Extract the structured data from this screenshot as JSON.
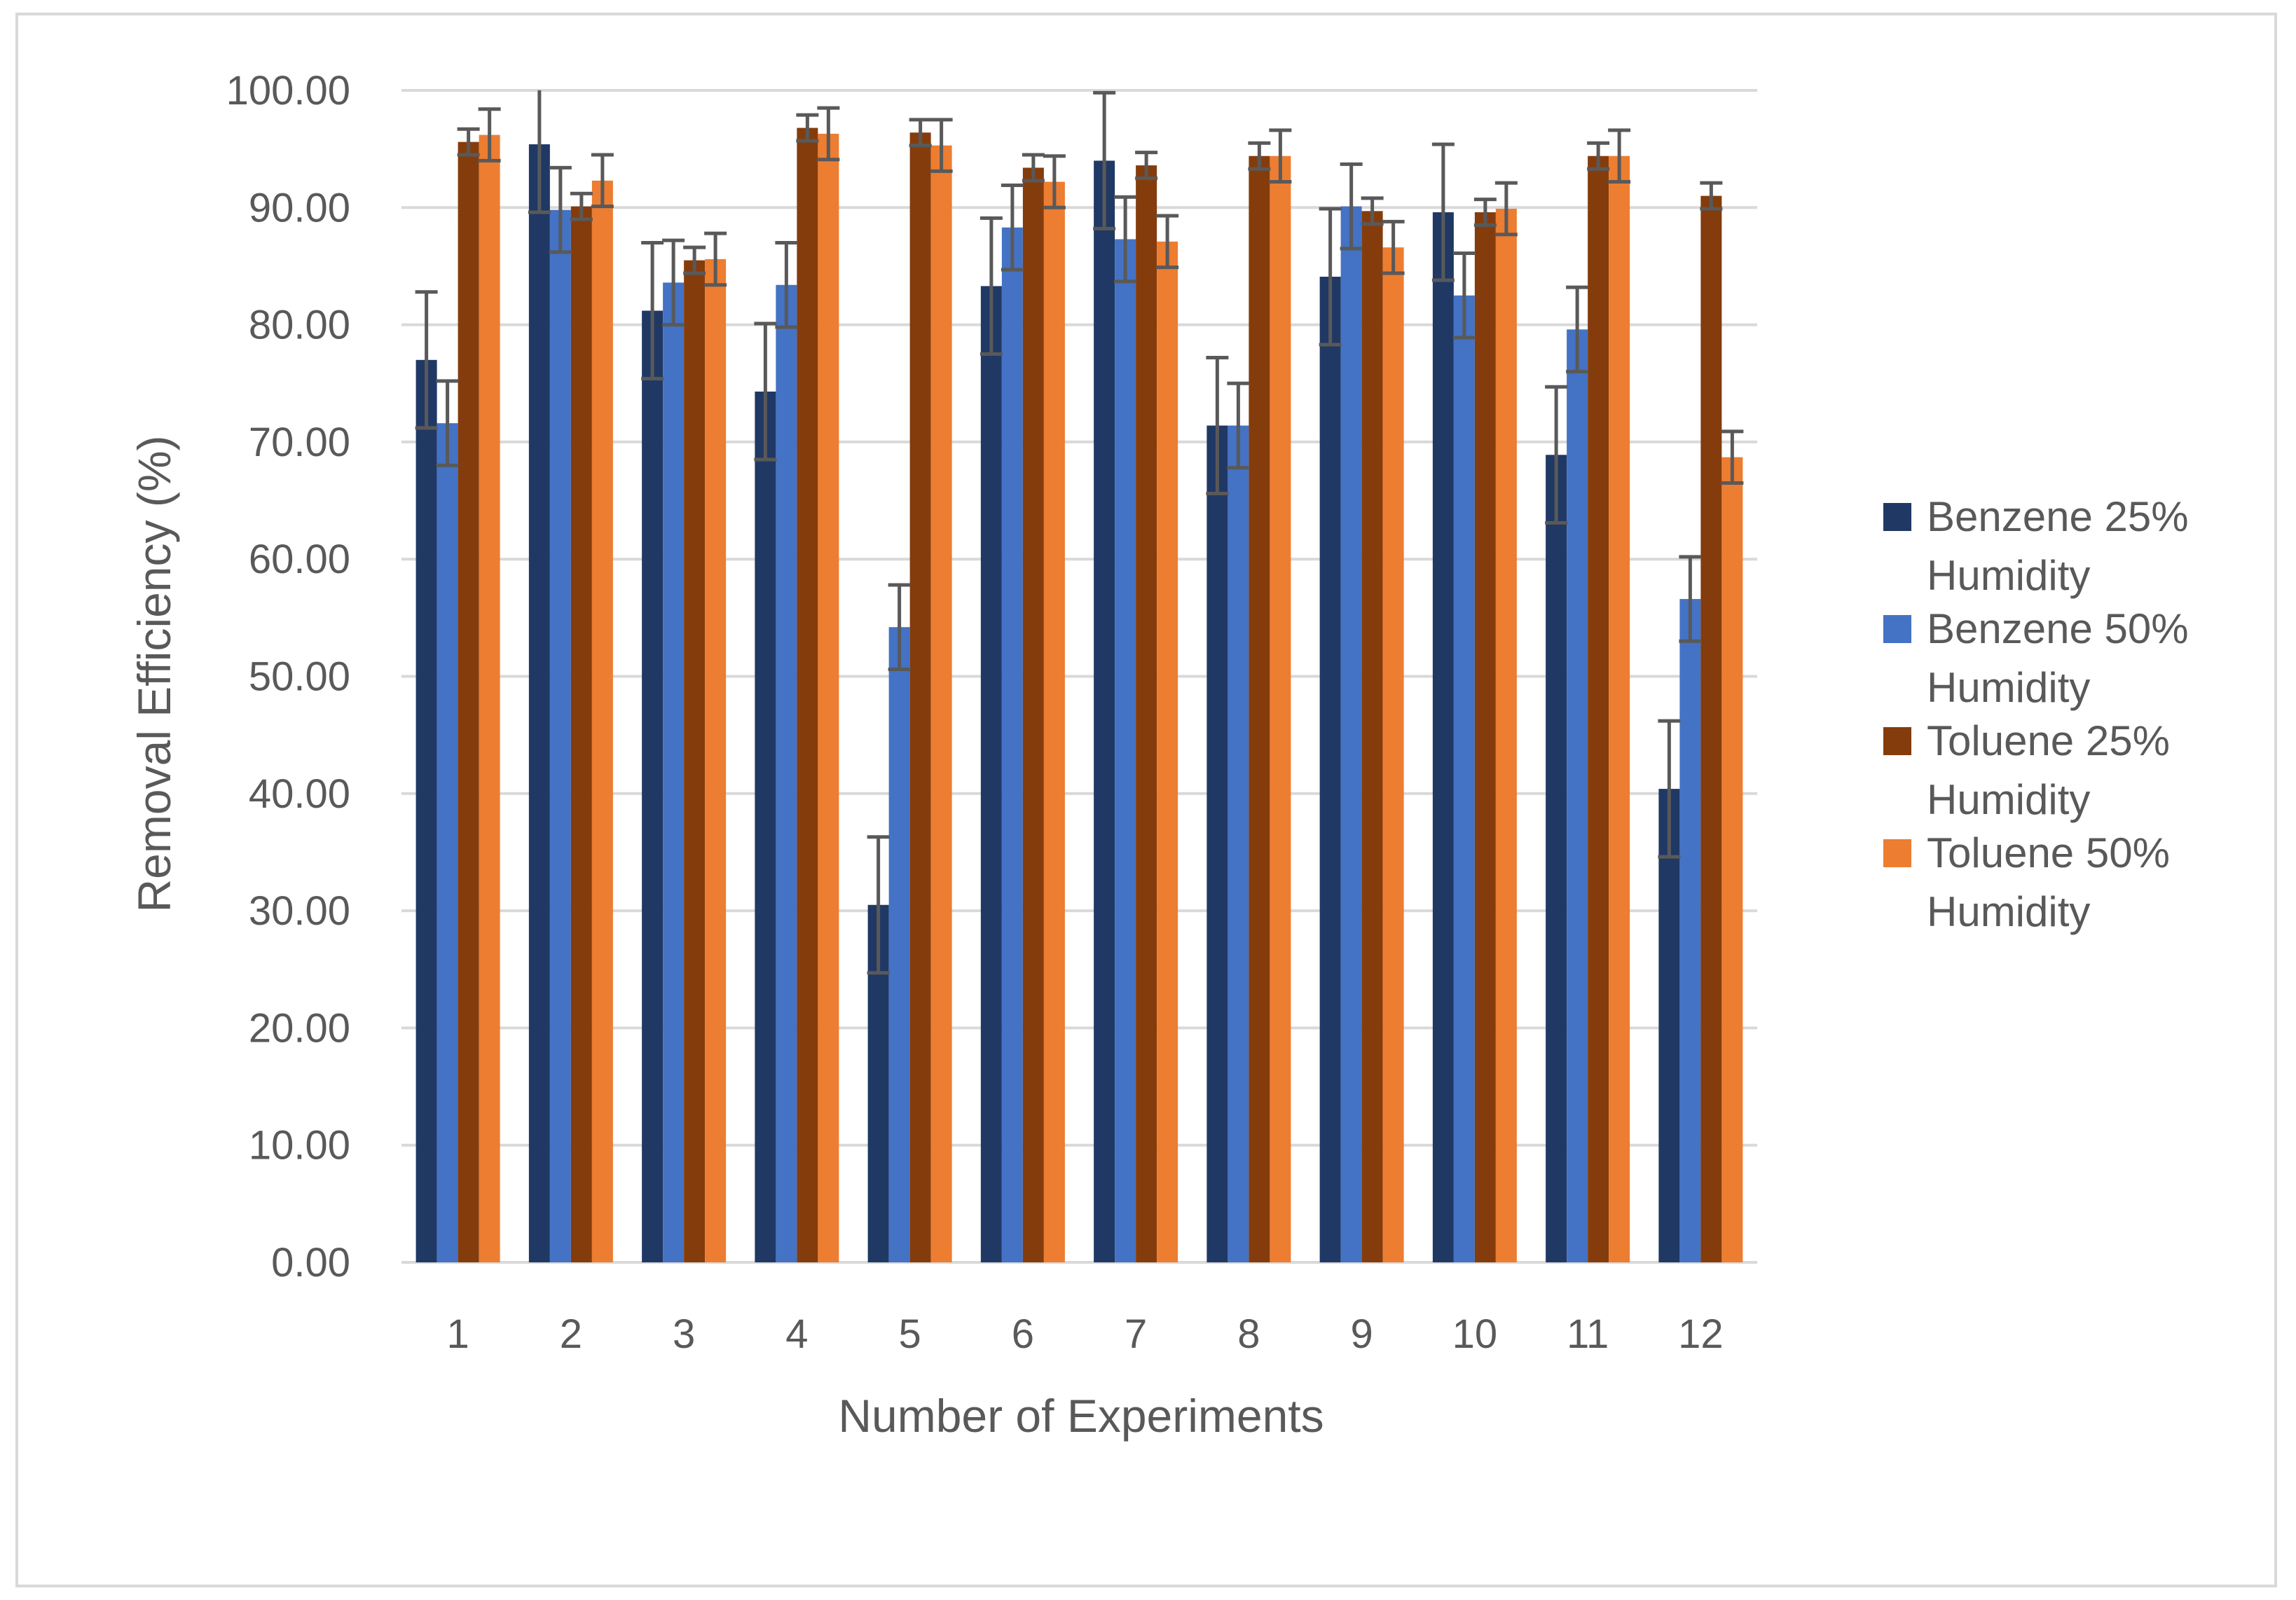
{
  "chart_data": {
    "type": "bar",
    "title": "",
    "xlabel": "Number of Experiments",
    "ylabel": "Removal Efficiency (%)",
    "ylim": [
      0,
      100
    ],
    "ytick_step": 10,
    "ytick_labels": [
      "0.00",
      "10.00",
      "20.00",
      "30.00",
      "40.00",
      "50.00",
      "60.00",
      "70.00",
      "80.00",
      "90.00",
      "100.00"
    ],
    "grid": true,
    "legend_position": "right",
    "categories": [
      "1",
      "2",
      "3",
      "4",
      "5",
      "6",
      "7",
      "8",
      "9",
      "10",
      "11",
      "12"
    ],
    "series": [
      {
        "name": "Benzene 25%",
        "name_line2": "Humidity",
        "color": "#203864",
        "values": [
          77.0,
          95.4,
          81.2,
          74.3,
          30.5,
          83.3,
          94.0,
          71.4,
          84.1,
          89.6,
          68.9,
          40.4
        ],
        "errors": [
          5.8,
          5.8,
          5.8,
          5.8,
          5.8,
          5.8,
          5.8,
          5.8,
          5.8,
          5.8,
          5.8,
          5.8
        ]
      },
      {
        "name": "Benzene 50%",
        "name_line2": "Humidity",
        "color": "#4472c4",
        "values": [
          71.6,
          89.8,
          83.6,
          83.4,
          54.2,
          88.3,
          87.3,
          71.4,
          90.1,
          82.5,
          79.6,
          56.6
        ],
        "errors": [
          3.6,
          3.6,
          3.6,
          3.6,
          3.6,
          3.6,
          3.6,
          3.6,
          3.6,
          3.6,
          3.6,
          3.6
        ]
      },
      {
        "name": "Toluene 25%",
        "name_line2": "Humidity",
        "color": "#843c0c",
        "values": [
          95.6,
          90.1,
          85.5,
          96.8,
          96.4,
          93.4,
          93.6,
          94.4,
          89.7,
          89.6,
          94.4,
          91.0
        ],
        "errors": [
          1.1,
          1.1,
          1.1,
          1.1,
          1.1,
          1.1,
          1.1,
          1.1,
          1.1,
          1.1,
          1.1,
          1.1
        ]
      },
      {
        "name": "Toluene 50%",
        "name_line2": "Humidity",
        "color": "#ed7d31",
        "values": [
          96.2,
          92.3,
          85.6,
          96.3,
          95.3,
          92.2,
          87.1,
          94.4,
          86.6,
          89.9,
          94.4,
          68.7
        ],
        "errors": [
          2.2,
          2.2,
          2.2,
          2.2,
          2.2,
          2.2,
          2.2,
          2.2,
          2.2,
          2.2,
          2.2,
          2.2
        ]
      }
    ]
  },
  "colors": {
    "gridline": "#d9d9d9",
    "axis_text": "#595959",
    "error_bar": "#595959",
    "frame": "#d9d9d9"
  }
}
